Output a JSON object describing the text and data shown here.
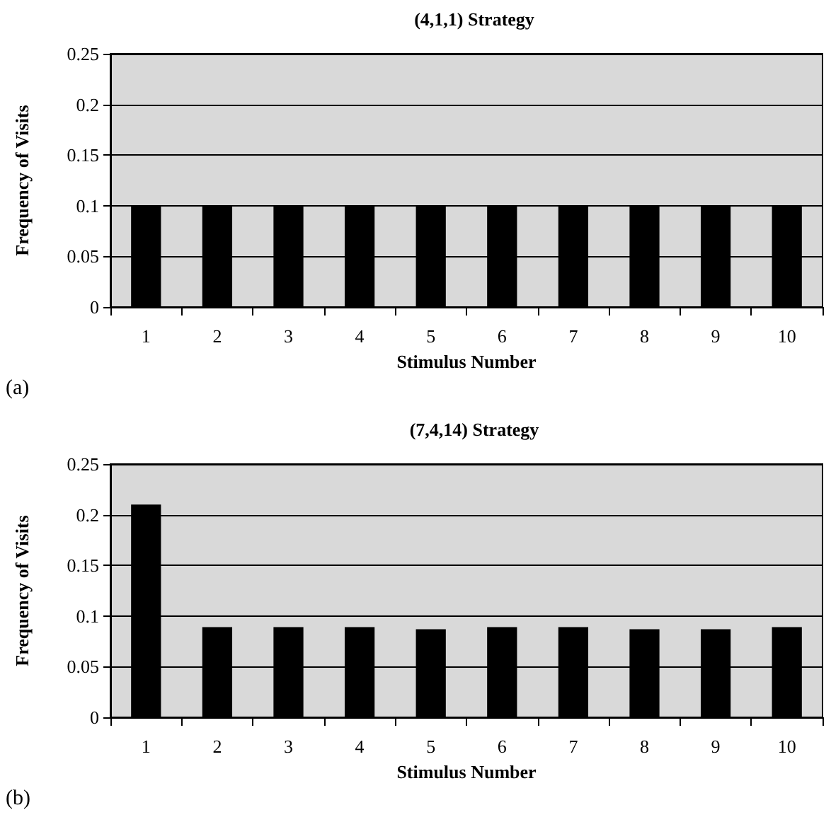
{
  "chart_data": [
    {
      "type": "bar",
      "title": "(4,1,1) Strategy",
      "xlabel": "Stimulus Number",
      "ylabel": "Frequency of Visits",
      "annotations": [
        "(a)"
      ],
      "categories": [
        "1",
        "2",
        "3",
        "4",
        "5",
        "6",
        "7",
        "8",
        "9",
        "10"
      ],
      "values": [
        0.1,
        0.1,
        0.1,
        0.1,
        0.1,
        0.1,
        0.1,
        0.1,
        0.1,
        0.1
      ],
      "color": "#000000",
      "ylim": [
        0,
        0.25
      ],
      "yticks": [
        0,
        0.05,
        0.1,
        0.15,
        0.2,
        0.25
      ],
      "grid": "y"
    },
    {
      "type": "bar",
      "title": "(7,4,14) Strategy",
      "xlabel": "Stimulus Number",
      "ylabel": "Frequency of Visits",
      "annotations": [
        "(b)"
      ],
      "categories": [
        "1",
        "2",
        "3",
        "4",
        "5",
        "6",
        "7",
        "8",
        "9",
        "10"
      ],
      "values": [
        0.21,
        0.089,
        0.089,
        0.089,
        0.087,
        0.089,
        0.089,
        0.087,
        0.087,
        0.089
      ],
      "color": "#000000",
      "ylim": [
        0,
        0.25
      ],
      "yticks": [
        0,
        0.05,
        0.1,
        0.15,
        0.2,
        0.25
      ],
      "grid": "y"
    }
  ]
}
